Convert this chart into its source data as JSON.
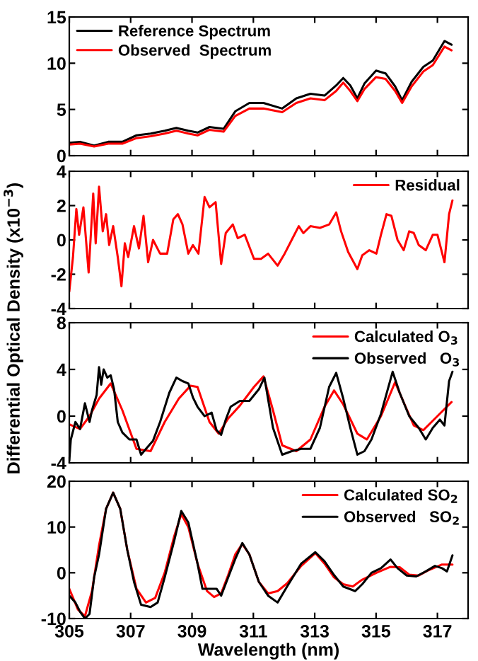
{
  "chart_data": [
    {
      "type": "line",
      "xlim": [
        305,
        318
      ],
      "xticks": [
        305,
        307,
        309,
        311,
        313,
        315,
        317
      ],
      "ylim": [
        0,
        15
      ],
      "yticks": [
        0,
        5,
        10,
        15
      ],
      "tick_labels": "y",
      "legend": "top left",
      "grid": false,
      "series": [
        {
          "name": "Reference Spectrum",
          "color": "#000000",
          "x": [
            305.0,
            305.35,
            305.81,
            306.27,
            306.73,
            307.19,
            307.65,
            308.11,
            308.49,
            308.88,
            309.18,
            309.57,
            310.03,
            310.41,
            310.87,
            311.33,
            311.94,
            312.4,
            312.86,
            313.32,
            313.7,
            313.93,
            314.16,
            314.39,
            314.62,
            315.0,
            315.31,
            315.62,
            315.85,
            316.16,
            316.54,
            316.85,
            317.23,
            317.46
          ],
          "values": [
            1.4,
            1.5,
            1.1,
            1.5,
            1.5,
            2.2,
            2.4,
            2.7,
            3.0,
            2.7,
            2.5,
            3.1,
            2.9,
            4.8,
            5.7,
            5.7,
            5.1,
            6.2,
            6.7,
            6.5,
            7.6,
            8.4,
            7.6,
            6.2,
            7.8,
            9.2,
            8.9,
            7.5,
            6.0,
            8.0,
            9.6,
            10.3,
            12.4,
            12.0
          ]
        },
        {
          "name": "Observed  Spectrum",
          "color": "#ff0000",
          "x": [
            305.0,
            305.35,
            305.81,
            306.27,
            306.73,
            307.19,
            307.65,
            308.11,
            308.49,
            308.88,
            309.18,
            309.57,
            310.03,
            310.41,
            310.87,
            311.33,
            311.94,
            312.4,
            312.86,
            313.32,
            313.7,
            313.93,
            314.16,
            314.39,
            314.62,
            315.0,
            315.31,
            315.62,
            315.85,
            316.16,
            316.54,
            316.85,
            317.23,
            317.46
          ],
          "values": [
            1.2,
            1.3,
            1.0,
            1.3,
            1.3,
            1.9,
            2.1,
            2.4,
            2.7,
            2.4,
            2.2,
            2.8,
            2.6,
            4.3,
            5.1,
            5.1,
            4.7,
            5.7,
            6.2,
            6.0,
            7.0,
            7.9,
            7.0,
            5.9,
            7.2,
            8.5,
            8.3,
            7.0,
            5.7,
            7.5,
            9.1,
            9.8,
            11.8,
            11.4
          ]
        }
      ]
    },
    {
      "type": "line",
      "xlim": [
        305,
        318
      ],
      "xticks": [
        305,
        307,
        309,
        311,
        313,
        315,
        317
      ],
      "ylim": [
        -4,
        4
      ],
      "yticks": [
        -4,
        -2,
        0,
        2,
        4
      ],
      "tick_labels": "y",
      "legend": "top right",
      "grid": false,
      "ylabel": "Differential Optical Density (x10$^{−3}$)",
      "series": [
        {
          "name": "Residual",
          "color": "#ff0000",
          "x": [
            305.0,
            305.12,
            305.23,
            305.32,
            305.46,
            305.63,
            305.78,
            305.86,
            305.97,
            306.09,
            306.2,
            306.3,
            306.43,
            306.58,
            306.7,
            306.81,
            306.92,
            307.11,
            307.27,
            307.42,
            307.57,
            307.73,
            307.96,
            308.19,
            308.39,
            308.54,
            308.69,
            308.88,
            309.03,
            309.21,
            309.41,
            309.57,
            309.77,
            309.95,
            310.1,
            310.33,
            310.49,
            310.72,
            311.02,
            311.25,
            311.48,
            311.79,
            312.02,
            312.25,
            312.48,
            312.63,
            312.86,
            313.17,
            313.47,
            313.7,
            313.86,
            314.09,
            314.39,
            314.55,
            314.78,
            315.01,
            315.16,
            315.34,
            315.5,
            315.7,
            315.9,
            316.08,
            316.23,
            316.39,
            316.62,
            316.85,
            317.0,
            317.23,
            317.38,
            317.49
          ],
          "values": [
            -3,
            -1,
            1.8,
            0.3,
            1.9,
            -1.9,
            2.7,
            -0.2,
            3.1,
            0.5,
            1.5,
            -0.3,
            0.8,
            -1.0,
            -2.7,
            -0.2,
            -1.0,
            0.8,
            -0.5,
            1.4,
            -1.3,
            0,
            -0.8,
            -0.8,
            1.2,
            1.5,
            0.9,
            -0.8,
            -0.3,
            -0.8,
            2.5,
            1.9,
            2.2,
            -1.4,
            0.4,
            0.9,
            0.1,
            0.3,
            -1.1,
            -1.1,
            -0.8,
            -1.5,
            -0.8,
            0,
            0.8,
            0.4,
            0.8,
            0.7,
            0.9,
            1.6,
            0.5,
            -0.7,
            -1.7,
            -0.9,
            -0.6,
            -0.8,
            0.3,
            1.5,
            1.4,
            0,
            -0.6,
            0.5,
            0.4,
            -0.3,
            -0.6,
            0.3,
            0.3,
            -1.3,
            1.5,
            2.3
          ]
        }
      ]
    },
    {
      "type": "line",
      "xlim": [
        305,
        318
      ],
      "xticks": [
        305,
        307,
        309,
        311,
        313,
        315,
        317
      ],
      "ylim": [
        -4,
        8
      ],
      "yticks": [
        -4,
        0,
        4,
        8
      ],
      "tick_labels": "y",
      "legend": "top right",
      "grid": false,
      "series": [
        {
          "name": "Calculated O$_{3}$",
          "color": "#ff0000",
          "x": [
            305.0,
            305.35,
            305.66,
            305.97,
            306.35,
            306.73,
            307.19,
            307.65,
            308.11,
            308.57,
            308.95,
            309.18,
            309.57,
            309.87,
            310.18,
            310.56,
            311.02,
            311.33,
            311.64,
            311.94,
            312.4,
            312.86,
            313.32,
            313.63,
            313.93,
            314.39,
            314.7,
            315.16,
            315.62,
            315.93,
            316.23,
            316.54,
            317.0,
            317.46
          ],
          "values": [
            -0.7,
            -1.1,
            0,
            1.5,
            2.8,
            0.5,
            -2.8,
            -3.0,
            -0.5,
            1.5,
            2.6,
            2.5,
            -0.5,
            -1.5,
            -0.2,
            0.9,
            2.5,
            3.4,
            0.5,
            -2.5,
            -3.0,
            -2.0,
            0.8,
            2.2,
            1.0,
            -1.5,
            -2.0,
            0,
            2.9,
            1.0,
            -0.8,
            -1.2,
            0,
            1.2
          ]
        },
        {
          "name": "Observed   O$_{3}$",
          "color": "#000000",
          "x": [
            305.0,
            305.05,
            305.2,
            305.35,
            305.51,
            305.66,
            305.74,
            305.89,
            305.97,
            306.04,
            306.12,
            306.24,
            306.35,
            306.46,
            306.58,
            306.73,
            306.96,
            307.19,
            307.34,
            307.5,
            307.73,
            307.96,
            308.26,
            308.49,
            308.69,
            308.88,
            309.03,
            309.18,
            309.41,
            309.64,
            309.8,
            309.95,
            310.1,
            310.26,
            310.56,
            310.87,
            311.18,
            311.36,
            311.64,
            311.94,
            312.25,
            312.56,
            312.86,
            313.17,
            313.47,
            313.7,
            313.93,
            314.16,
            314.39,
            314.62,
            314.85,
            315.16,
            315.54,
            315.77,
            316.08,
            316.39,
            316.62,
            316.85,
            317.08,
            317.23,
            317.38,
            317.49
          ],
          "values": [
            -3.8,
            -2,
            -0.5,
            -1.1,
            1.1,
            -0.5,
            0.5,
            1.8,
            4.2,
            2.7,
            4.0,
            3.3,
            3.5,
            2.3,
            -0.5,
            -1.4,
            -2.0,
            -2.0,
            -3.3,
            -2.8,
            -2.1,
            -0.5,
            2.0,
            3.3,
            3.0,
            2.8,
            1.6,
            0.8,
            0,
            0.3,
            -1.2,
            -1.6,
            -0.3,
            0.8,
            1.3,
            1.3,
            2.3,
            3.3,
            -1.0,
            -3.3,
            -3.0,
            -2.8,
            -2.8,
            -1.0,
            2.5,
            3.7,
            1.5,
            -1.0,
            -3.3,
            -3.0,
            -2.0,
            0.2,
            3.8,
            2.0,
            0,
            -1.0,
            -2.0,
            -1.0,
            -0.3,
            -0.8,
            3.0,
            3.8
          ]
        }
      ]
    },
    {
      "type": "line",
      "xlim": [
        305,
        318
      ],
      "xticks": [
        305,
        307,
        309,
        311,
        313,
        315,
        317
      ],
      "ylim": [
        -10,
        20
      ],
      "yticks": [
        -10,
        0,
        10,
        20
      ],
      "legend": "top right",
      "grid": false,
      "xlabel": "Wavelength (nm)",
      "series": [
        {
          "name": "Calculated SO$_{2}$",
          "color": "#ff0000",
          "x": [
            305.0,
            305.28,
            305.51,
            305.74,
            305.97,
            306.2,
            306.43,
            306.66,
            306.89,
            307.19,
            307.5,
            307.8,
            308.11,
            308.42,
            308.65,
            308.88,
            309.18,
            309.49,
            309.72,
            309.95,
            310.18,
            310.41,
            310.64,
            310.87,
            311.18,
            311.48,
            311.79,
            312.1,
            312.56,
            313.02,
            313.32,
            313.63,
            313.93,
            314.24,
            314.55,
            315.01,
            315.47,
            315.77,
            316.08,
            316.39,
            316.69,
            317.15,
            317.49
          ],
          "values": [
            -3.5,
            -8,
            -9.5,
            -4,
            6,
            14,
            17.5,
            14,
            5,
            -3.5,
            -6.5,
            -5.5,
            0,
            8,
            12.8,
            10,
            2,
            -4,
            -5.3,
            -4.5,
            -0.5,
            4,
            6.3,
            4,
            -2,
            -4.5,
            -4.0,
            -2.3,
            1.5,
            4.3,
            2,
            -1,
            -2.5,
            -3,
            -1.5,
            0,
            1.3,
            1.2,
            -0.4,
            -0.6,
            0.5,
            1.8,
            1.8
          ]
        },
        {
          "name": "Observed   SO$_{2}$",
          "color": "#000000",
          "x": [
            305.0,
            305.2,
            305.35,
            305.51,
            305.66,
            305.81,
            305.97,
            306.2,
            306.43,
            306.66,
            306.89,
            307.11,
            307.34,
            307.65,
            307.88,
            308.11,
            308.42,
            308.65,
            308.88,
            309.18,
            309.34,
            309.57,
            309.8,
            309.95,
            310.18,
            310.41,
            310.64,
            310.87,
            311.18,
            311.48,
            311.79,
            312.1,
            312.56,
            313.02,
            313.32,
            313.63,
            313.93,
            314.32,
            314.55,
            314.85,
            315.16,
            315.47,
            315.7,
            316.0,
            316.31,
            316.62,
            316.92,
            317.15,
            317.31,
            317.49
          ],
          "values": [
            -5,
            -6.5,
            -8.5,
            -10,
            -9,
            -1,
            4,
            14,
            17.5,
            14,
            5,
            -2,
            -7,
            -7.5,
            -6.5,
            -1,
            7,
            13.5,
            11,
            2,
            -3.5,
            -3.5,
            -3.5,
            -5,
            -1,
            3,
            6.5,
            4,
            -2,
            -5,
            -6.5,
            -3,
            2,
            4.5,
            2.5,
            -0.5,
            -3,
            -4,
            -2.5,
            0,
            1,
            2.9,
            1.0,
            -0.6,
            -0.8,
            0.3,
            1.5,
            1.0,
            0.3,
            3.8
          ]
        }
      ]
    }
  ]
}
